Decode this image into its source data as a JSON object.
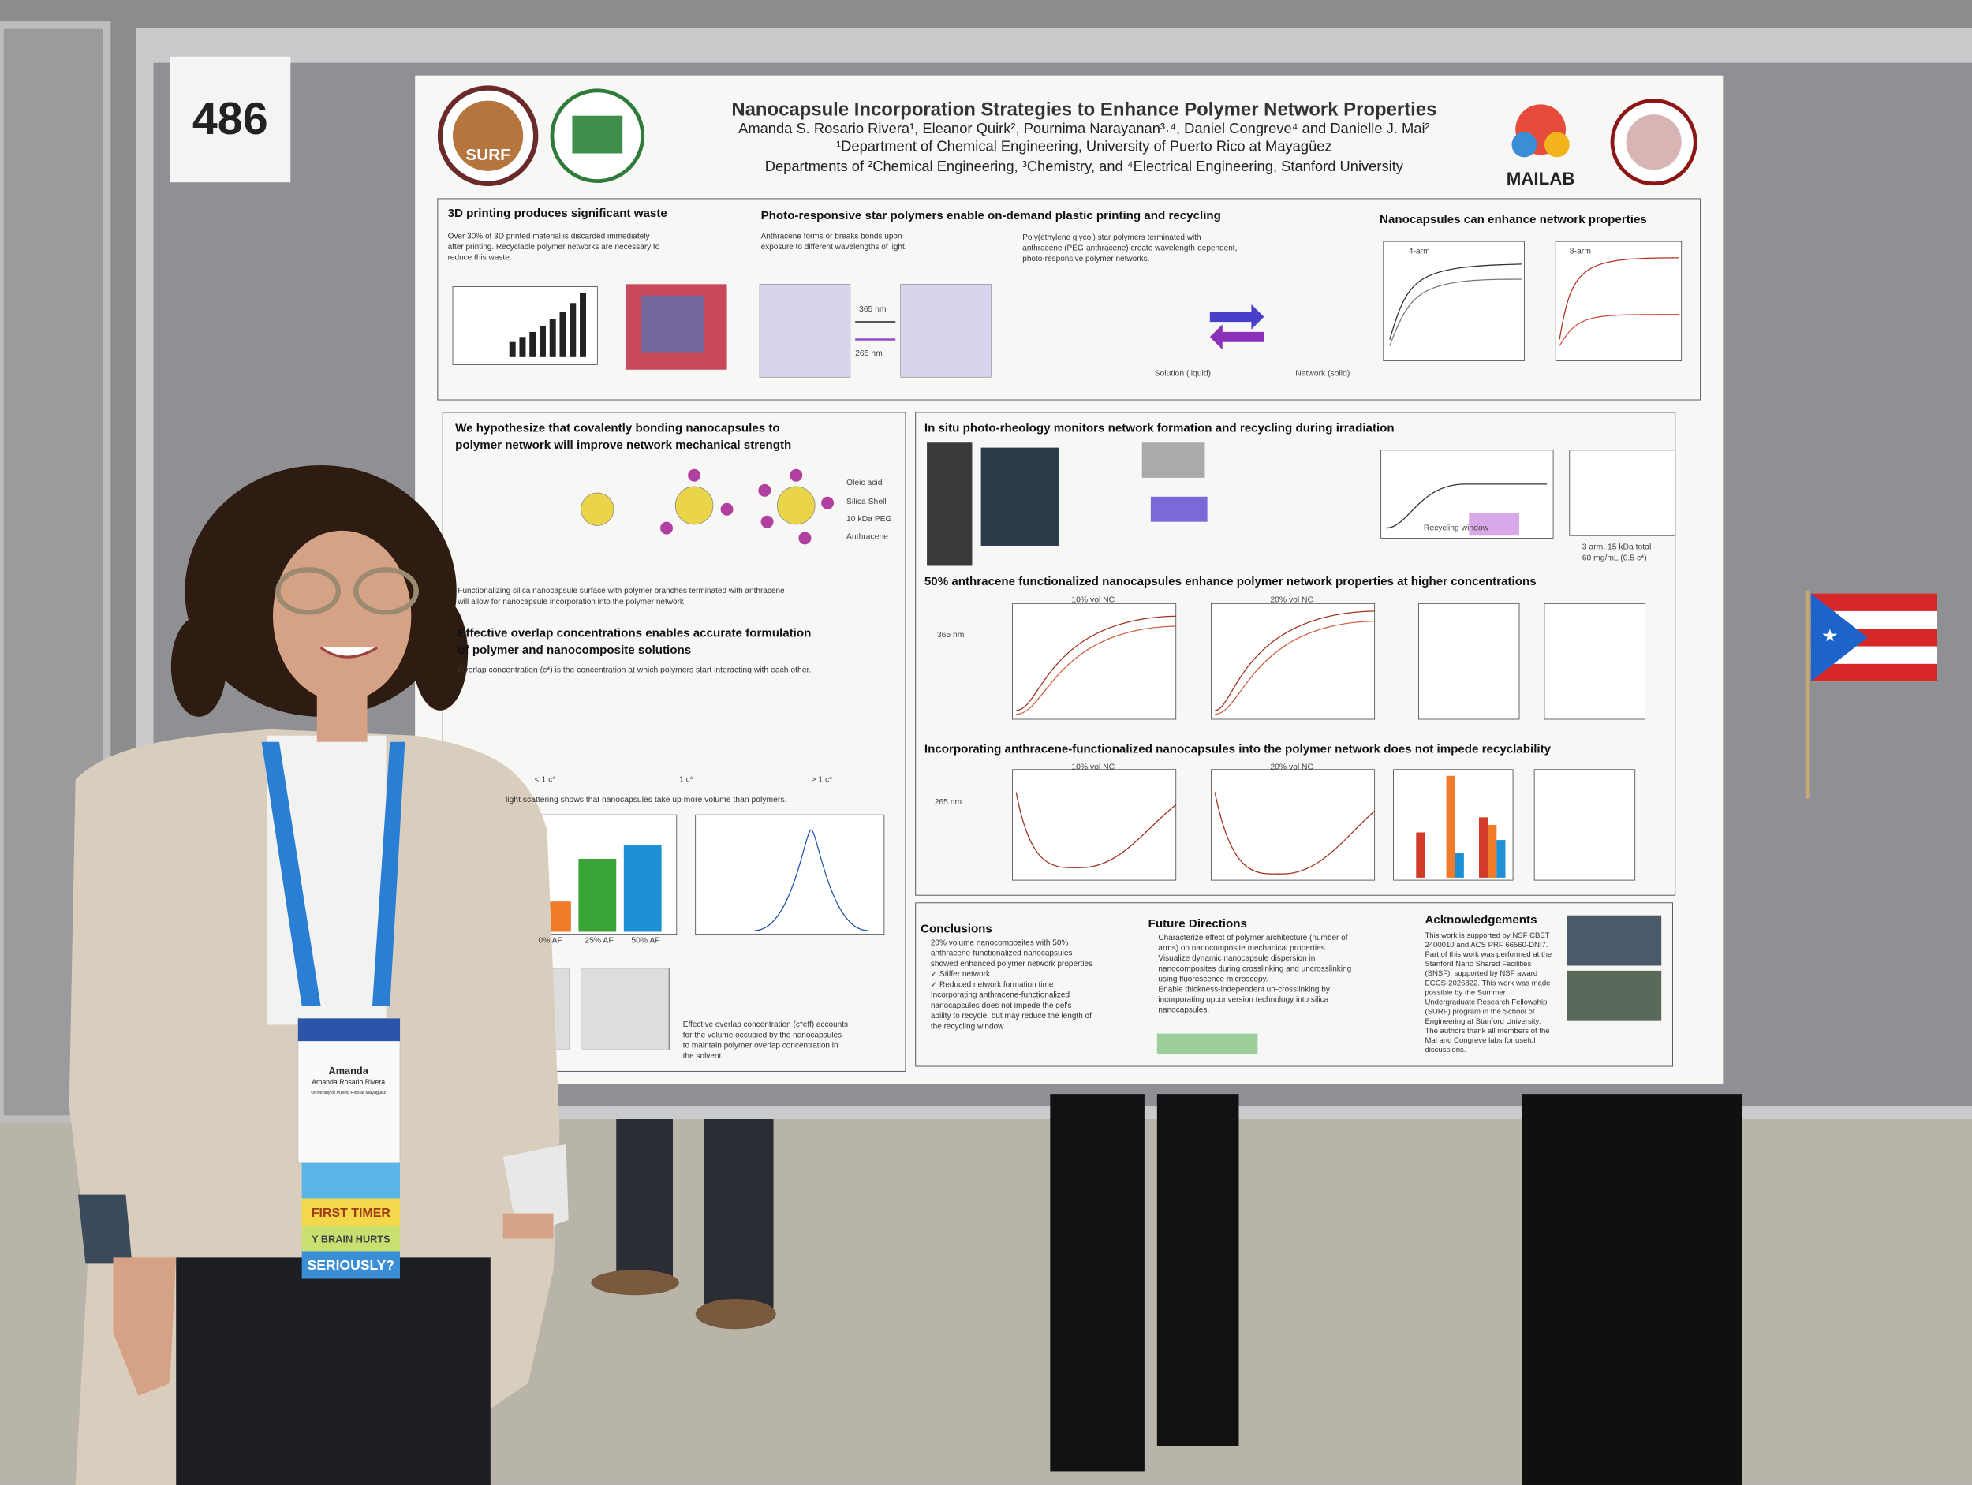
{
  "booth_number": "486",
  "poster": {
    "title": "Nanocapsule Incorporation Strategies to Enhance Polymer Network Properties",
    "authors": "Amanda S. Rosario Rivera¹, Eleanor Quirk², Pournima Narayanan³˒⁴, Daniel Congreve⁴ and Danielle J. Mai²",
    "affiliations": [
      "¹Department of Chemical Engineering, University of Puerto Rico at Mayagüez",
      "Departments of ²Chemical Engineering, ³Chemistry, and ⁴Electrical Engineering, Stanford University"
    ],
    "logos": [
      "SURF",
      "MAILAB"
    ],
    "sections": [
      {
        "heading": [
          "3D printing produces significant waste"
        ],
        "body": [
          "Over 30% of 3D printed material is discarded immediately",
          "after printing. Recyclable polymer networks are necessary to",
          "reduce this waste."
        ]
      },
      {
        "heading": [
          "Photo-responsive star polymers enable on-demand plastic printing and recycling"
        ],
        "body": [
          "Anthracene forms or breaks bonds upon",
          "exposure to different wavelengths of light."
        ],
        "body2": [
          "Poly(ethylene glycol) star polymers terminated with",
          "anthracene (PEG-anthracene) create wavelength-dependent,",
          "photo-responsive polymer networks."
        ]
      },
      {
        "heading": [
          "Nanocapsules can enhance network properties"
        ]
      },
      {
        "heading": [
          "We hypothesize that covalently bonding nanocapsules to",
          "polymer network will improve network mechanical strength"
        ],
        "body": [
          "Functionalizing silica nanocapsule surface with polymer branches terminated with anthracene",
          "will allow for nanocapsule incorporation into the polymer network."
        ]
      },
      {
        "heading": [
          "Effective overlap concentrations enables accurate formulation",
          "of polymer and nanocomposite solutions"
        ],
        "body": [
          "Overlap concentration (c*) is the concentration at which polymers start interacting with each other."
        ],
        "body2": [
          "light scattering shows that nanocapsules take up more volume than polymers."
        ],
        "body3": [
          "Effective overlap concentration (c*eff) accounts",
          "for the volume occupied by the nanocapsules",
          "to maintain polymer overlap concentration in",
          "the solvent."
        ]
      },
      {
        "heading": [
          "In situ photo-rheology monitors network formation and recycling during irradiation"
        ]
      },
      {
        "heading": [
          "50% anthracene functionalized nanocapsules enhance polymer network properties at higher concentrations"
        ]
      },
      {
        "heading": [
          "Incorporating anthracene-functionalized nanocapsules into the polymer network does not impede recyclability"
        ]
      },
      {
        "heading": [
          "Conclusions"
        ],
        "body": [
          "20% volume nanocomposites with 50%",
          "anthracene-functionalized nanocapsules",
          "showed enhanced polymer network properties",
          "✓ Stiffer network",
          "✓ Reduced network formation time",
          "Incorporating anthracene-functionalized",
          "nanocapsules does not impede the gel's",
          "ability to recycle, but may reduce the length of",
          "the recycling window"
        ]
      },
      {
        "heading": [
          "Future Directions"
        ],
        "body": [
          "Characterize effect of polymer architecture (number of",
          "arms) on nanocomposite mechanical properties.",
          "Visualize dynamic nanocapsule dispersion in",
          "nanocomposites during crosslinking and uncrosslinking",
          "using fluorescence microscopy.",
          "Enable thickness-independent un-crosslinking by",
          "incorporating upconversion technology into silica",
          "nanocapsules."
        ]
      },
      {
        "heading": [
          "Acknowledgements"
        ],
        "body": [
          "This work is supported by NSF CBET",
          "2400010 and ACS PRF 66560-DNI7.",
          "Part of this work was performed at the",
          "Stanford Nano Shared Facilities",
          "(SNSF), supported by NSF award",
          "ECCS-2026822. This work was made",
          "possible by the Summer",
          "Undergraduate Research Fellowship",
          "(SURF) program in the School of",
          "Engineering at Stanford University.",
          "The authors thank all members of the",
          "Mai and Congreve labs for useful",
          "discussions."
        ]
      }
    ],
    "labels": [
      "365 nm",
      "265 nm",
      "Solution (liquid)",
      "Network (solid)",
      "Oleic acid",
      "Silica Shell",
      "10 kDa PEG",
      "Anthracene",
      "< 1 c*",
      "1 c*",
      "> 1 c*",
      "0% AF",
      "25% AF",
      "50% AF",
      "Recycling window",
      "3 arm, 15 kDa total",
      "60 mg/mL (0.5 c*)",
      "10% vol NC",
      "20% vol NC",
      "365 nm",
      "10% vol NC",
      "20% vol NC",
      "265 nm",
      "4-arm",
      "8-arm"
    ]
  },
  "badge": {
    "name": "Amanda",
    "full_name": "Amanda Rosario Rivera",
    "affiliation": "University of Puerto Rico at Mayagüez",
    "ribbons": [
      "FIRST TIMER",
      "Y BRAIN HURTS",
      "SERIOUSLY?"
    ]
  }
}
